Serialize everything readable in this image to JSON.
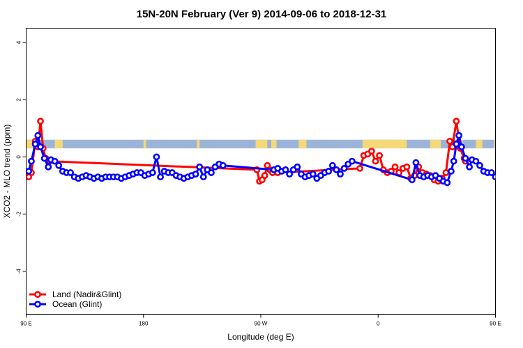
{
  "chart_data": {
    "type": "line",
    "title": "15N-20N February (Ver 9)   2014-09-06 to 2018-12-31",
    "xlabel": "Longitude (deg E)",
    "ylabel": "XCO2 - MLO trend (ppm)",
    "xlim": [
      90,
      450
    ],
    "ylim": [
      -5.5,
      4.5
    ],
    "x_ticks": [
      {
        "value": 90,
        "label": "90 E"
      },
      {
        "value": 180,
        "label": "180"
      },
      {
        "value": 270,
        "label": "90 W"
      },
      {
        "value": 360,
        "label": "0"
      },
      {
        "value": 450,
        "label": "90 E"
      },
      {
        "value": 540,
        "label": "180"
      }
    ],
    "y_ticks": [
      {
        "value": -4,
        "label": "-4"
      },
      {
        "value": -2,
        "label": "-2"
      },
      {
        "value": 0,
        "label": "0"
      },
      {
        "value": 2,
        "label": "2"
      },
      {
        "value": 4,
        "label": "4"
      }
    ],
    "land_strip": {
      "y_min": 0.3,
      "y_max": 0.6,
      "ocean_color": "#9cb4d8",
      "land_color": "#f5d878"
    },
    "land_spans": [
      [
        90,
        95
      ],
      [
        112,
        118
      ],
      [
        180,
        182
      ],
      [
        221,
        223
      ],
      [
        266,
        275
      ],
      [
        278,
        282
      ],
      [
        299,
        305
      ],
      [
        348,
        382
      ],
      [
        400,
        408
      ],
      [
        421,
        425
      ],
      [
        435,
        440
      ],
      [
        449,
        454
      ],
      [
        467,
        473
      ],
      [
        539,
        541
      ]
    ],
    "legend": {
      "position": "bottom-left"
    },
    "series": [
      {
        "name": "Land (Nadir&Glint)",
        "color": "#ff0000",
        "points": [
          [
            92,
            -0.7
          ],
          [
            94,
            -0.55
          ],
          [
            97,
            0.55
          ],
          [
            99,
            0.35
          ],
          [
            101,
            1.25
          ],
          [
            103,
            0.3
          ],
          [
            105,
            -0.05
          ],
          [
            107,
            -0.35
          ],
          [
            108,
            -0.15
          ],
          [
            267,
            -0.45
          ],
          [
            269,
            -0.85
          ],
          [
            271,
            -0.8
          ],
          [
            273,
            -0.65
          ],
          [
            275,
            -0.3
          ],
          [
            277,
            -0.45
          ],
          [
            279,
            -0.55
          ],
          [
            283,
            -0.55
          ],
          [
            346,
            -0.4
          ],
          [
            349,
            0.05
          ],
          [
            352,
            0.1
          ],
          [
            355,
            0.2
          ],
          [
            358,
            -0.15
          ],
          [
            361,
            0.05
          ],
          [
            364,
            -0.45
          ],
          [
            367,
            -0.55
          ],
          [
            370,
            -0.5
          ],
          [
            373,
            -0.35
          ],
          [
            376,
            -0.55
          ],
          [
            379,
            -0.4
          ],
          [
            382,
            -0.35
          ],
          [
            385,
            -0.75
          ],
          [
            388,
            -0.65
          ],
          [
            391,
            -0.35
          ],
          [
            394,
            -0.55
          ],
          [
            397,
            -0.6
          ],
          [
            400,
            -0.65
          ],
          [
            403,
            -0.8
          ],
          [
            406,
            -0.85
          ],
          [
            409,
            -0.75
          ],
          [
            412,
            -0.55
          ],
          [
            415,
            0.55
          ],
          [
            417,
            0.35
          ],
          [
            420,
            1.25
          ],
          [
            423,
            0.3
          ],
          [
            426,
            -0.05
          ],
          [
            427,
            -0.15
          ]
        ]
      },
      {
        "name": "Ocean (Glint)",
        "color": "#0000ff",
        "points": [
          [
            92,
            -0.5
          ],
          [
            94,
            -0.15
          ],
          [
            97,
            0.45
          ],
          [
            99,
            0.75
          ],
          [
            101,
            0.35
          ],
          [
            104,
            -0.05
          ],
          [
            107,
            -0.35
          ],
          [
            109,
            -0.1
          ],
          [
            112,
            -0.15
          ],
          [
            115,
            -0.3
          ],
          [
            118,
            -0.5
          ],
          [
            121,
            -0.55
          ],
          [
            124,
            -0.55
          ],
          [
            127,
            -0.7
          ],
          [
            130,
            -0.75
          ],
          [
            133,
            -0.7
          ],
          [
            136,
            -0.65
          ],
          [
            139,
            -0.7
          ],
          [
            142,
            -0.75
          ],
          [
            145,
            -0.7
          ],
          [
            148,
            -0.75
          ],
          [
            151,
            -0.7
          ],
          [
            154,
            -0.7
          ],
          [
            157,
            -0.7
          ],
          [
            160,
            -0.7
          ],
          [
            163,
            -0.75
          ],
          [
            166,
            -0.7
          ],
          [
            169,
            -0.65
          ],
          [
            172,
            -0.6
          ],
          [
            175,
            -0.55
          ],
          [
            178,
            -0.55
          ],
          [
            181,
            -0.65
          ],
          [
            184,
            -0.6
          ],
          [
            187,
            -0.55
          ],
          [
            190,
            0.0
          ],
          [
            193,
            -0.7
          ],
          [
            196,
            -0.5
          ],
          [
            199,
            -0.55
          ],
          [
            202,
            -0.55
          ],
          [
            205,
            -0.65
          ],
          [
            208,
            -0.7
          ],
          [
            211,
            -0.75
          ],
          [
            214,
            -0.7
          ],
          [
            217,
            -0.65
          ],
          [
            220,
            -0.6
          ],
          [
            223,
            -0.35
          ],
          [
            226,
            -0.7
          ],
          [
            229,
            -0.45
          ],
          [
            232,
            -0.55
          ],
          [
            235,
            -0.35
          ],
          [
            238,
            -0.25
          ],
          [
            241,
            -0.3
          ],
          [
            280,
            -0.45
          ],
          [
            283,
            -0.4
          ],
          [
            286,
            -0.5
          ],
          [
            289,
            -0.45
          ],
          [
            292,
            -0.6
          ],
          [
            295,
            -0.45
          ],
          [
            298,
            -0.35
          ],
          [
            301,
            -0.6
          ],
          [
            304,
            -0.7
          ],
          [
            307,
            -0.65
          ],
          [
            310,
            -0.6
          ],
          [
            313,
            -0.75
          ],
          [
            316,
            -0.65
          ],
          [
            319,
            -0.55
          ],
          [
            322,
            -0.5
          ],
          [
            325,
            -0.3
          ],
          [
            328,
            -0.45
          ],
          [
            331,
            -0.6
          ],
          [
            334,
            -0.4
          ],
          [
            337,
            -0.25
          ],
          [
            340,
            -0.15
          ],
          [
            386,
            -0.8
          ],
          [
            389,
            -0.2
          ],
          [
            392,
            -0.65
          ],
          [
            395,
            -0.7
          ],
          [
            398,
            -0.65
          ],
          [
            401,
            -0.7
          ],
          [
            404,
            -0.65
          ],
          [
            407,
            -0.75
          ],
          [
            410,
            -0.85
          ],
          [
            413,
            -0.9
          ],
          [
            416,
            -0.5
          ],
          [
            418,
            -0.15
          ],
          [
            420,
            0.45
          ],
          [
            422,
            0.75
          ],
          [
            424,
            0.35
          ],
          [
            427,
            -0.05
          ],
          [
            430,
            -0.35
          ],
          [
            432,
            -0.1
          ],
          [
            435,
            -0.15
          ],
          [
            438,
            -0.3
          ],
          [
            441,
            -0.5
          ],
          [
            444,
            -0.55
          ],
          [
            447,
            -0.55
          ],
          [
            450,
            -0.7
          ]
        ]
      }
    ]
  }
}
